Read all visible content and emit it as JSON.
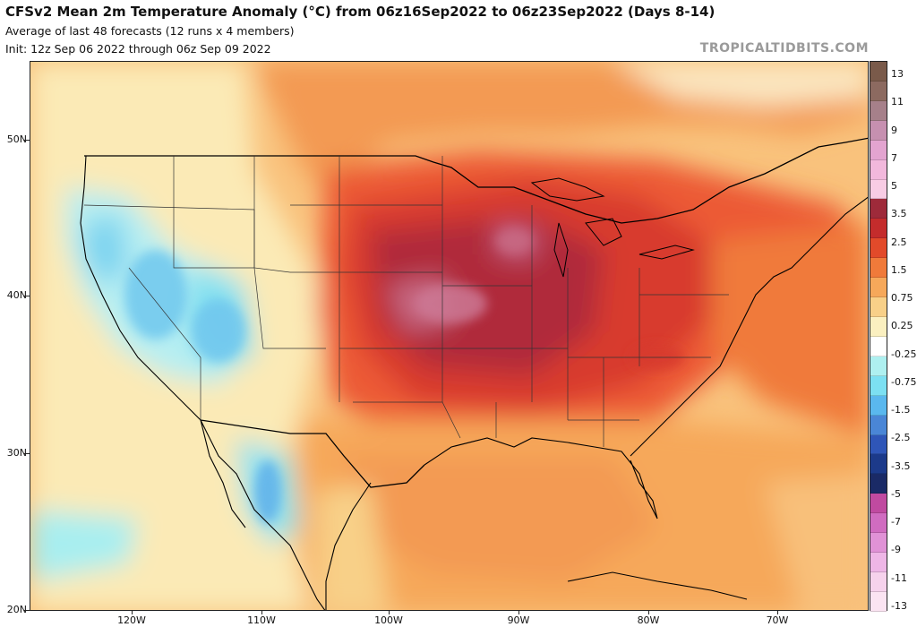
{
  "header": {
    "title": "CFSv2 Mean 2m Temperature Anomaly (°C) from 06z16Sep2022 to 06z23Sep2022 (Days 8-14)",
    "subtitle": "Average of last 48 forecasts (12 runs x 4 members)",
    "init": "Init: 12z Sep 06 2022 through 06z Sep 09 2022",
    "watermark": "TROPICALTIDBITS.COM"
  },
  "axes": {
    "lat_labels": [
      "50N",
      "40N",
      "30N",
      "20N"
    ],
    "lon_labels": [
      "120W",
      "110W",
      "100W",
      "90W",
      "80W",
      "70W"
    ]
  },
  "colorbar": {
    "labels": [
      "13",
      "11",
      "9",
      "7",
      "5",
      "3.5",
      "2.5",
      "1.5",
      "0.75",
      "0.25",
      "-0.25",
      "-0.75",
      "-1.5",
      "-2.5",
      "-3.5",
      "-5",
      "-7",
      "-9",
      "-11",
      "-13"
    ],
    "colors": [
      "#7a5a4a",
      "#8c6a60",
      "#a6808a",
      "#c690b0",
      "#e3a4d0",
      "#f2b8dc",
      "#f8cce4",
      "#9e2a3a",
      "#c42c2c",
      "#e24a2a",
      "#f07a3a",
      "#f6a85a",
      "#f8d088",
      "#fbf0c0",
      "#ffffff",
      "#aef0f0",
      "#7ce0f2",
      "#5ab8ee",
      "#4a86d6",
      "#2f56b8",
      "#1c3a8a",
      "#1a2a66",
      "#c04aa0",
      "#d06cc0",
      "#e092d6",
      "#eeb6e6",
      "#f6d2ec",
      "#fbe4f2"
    ]
  }
}
